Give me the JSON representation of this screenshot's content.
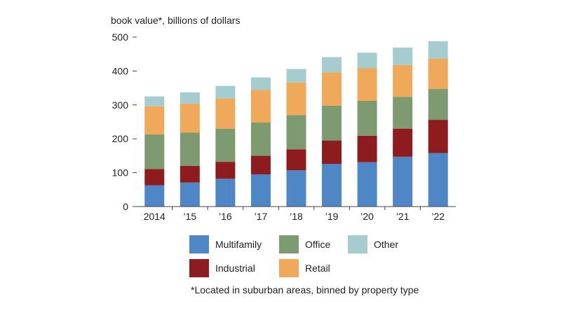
{
  "chart_data": {
    "type": "bar",
    "stacked": true,
    "title": "",
    "ylabel": "book value*, billions of dollars",
    "xlabel": "",
    "categories": [
      "2014",
      "’15",
      "’16",
      "’17",
      "’18",
      "’19",
      "’20",
      "’21",
      "’22"
    ],
    "ylim": [
      0,
      500
    ],
    "yticks": [
      "0",
      "100",
      "200",
      "300",
      "400",
      "500"
    ],
    "grid": false,
    "legend_position": "bottom",
    "series": [
      {
        "name": "Multifamily",
        "color": "#4e86c6",
        "values": [
          63,
          71,
          82,
          95,
          107,
          126,
          131,
          147,
          158
        ]
      },
      {
        "name": "Industrial",
        "color": "#8e1c1f",
        "values": [
          48,
          49,
          50,
          55,
          62,
          69,
          78,
          83,
          98
        ]
      },
      {
        "name": "Office",
        "color": "#7e9a70",
        "values": [
          102,
          98,
          98,
          98,
          101,
          103,
          103,
          94,
          91
        ]
      },
      {
        "name": "Retail",
        "color": "#f0a95a",
        "values": [
          83,
          86,
          89,
          96,
          96,
          98,
          96,
          94,
          89
        ]
      },
      {
        "name": "Other",
        "color": "#a5cdd0",
        "values": [
          29,
          33,
          37,
          37,
          40,
          45,
          46,
          51,
          52
        ]
      }
    ],
    "footnote": "*Located in suburban areas, binned by property type"
  }
}
